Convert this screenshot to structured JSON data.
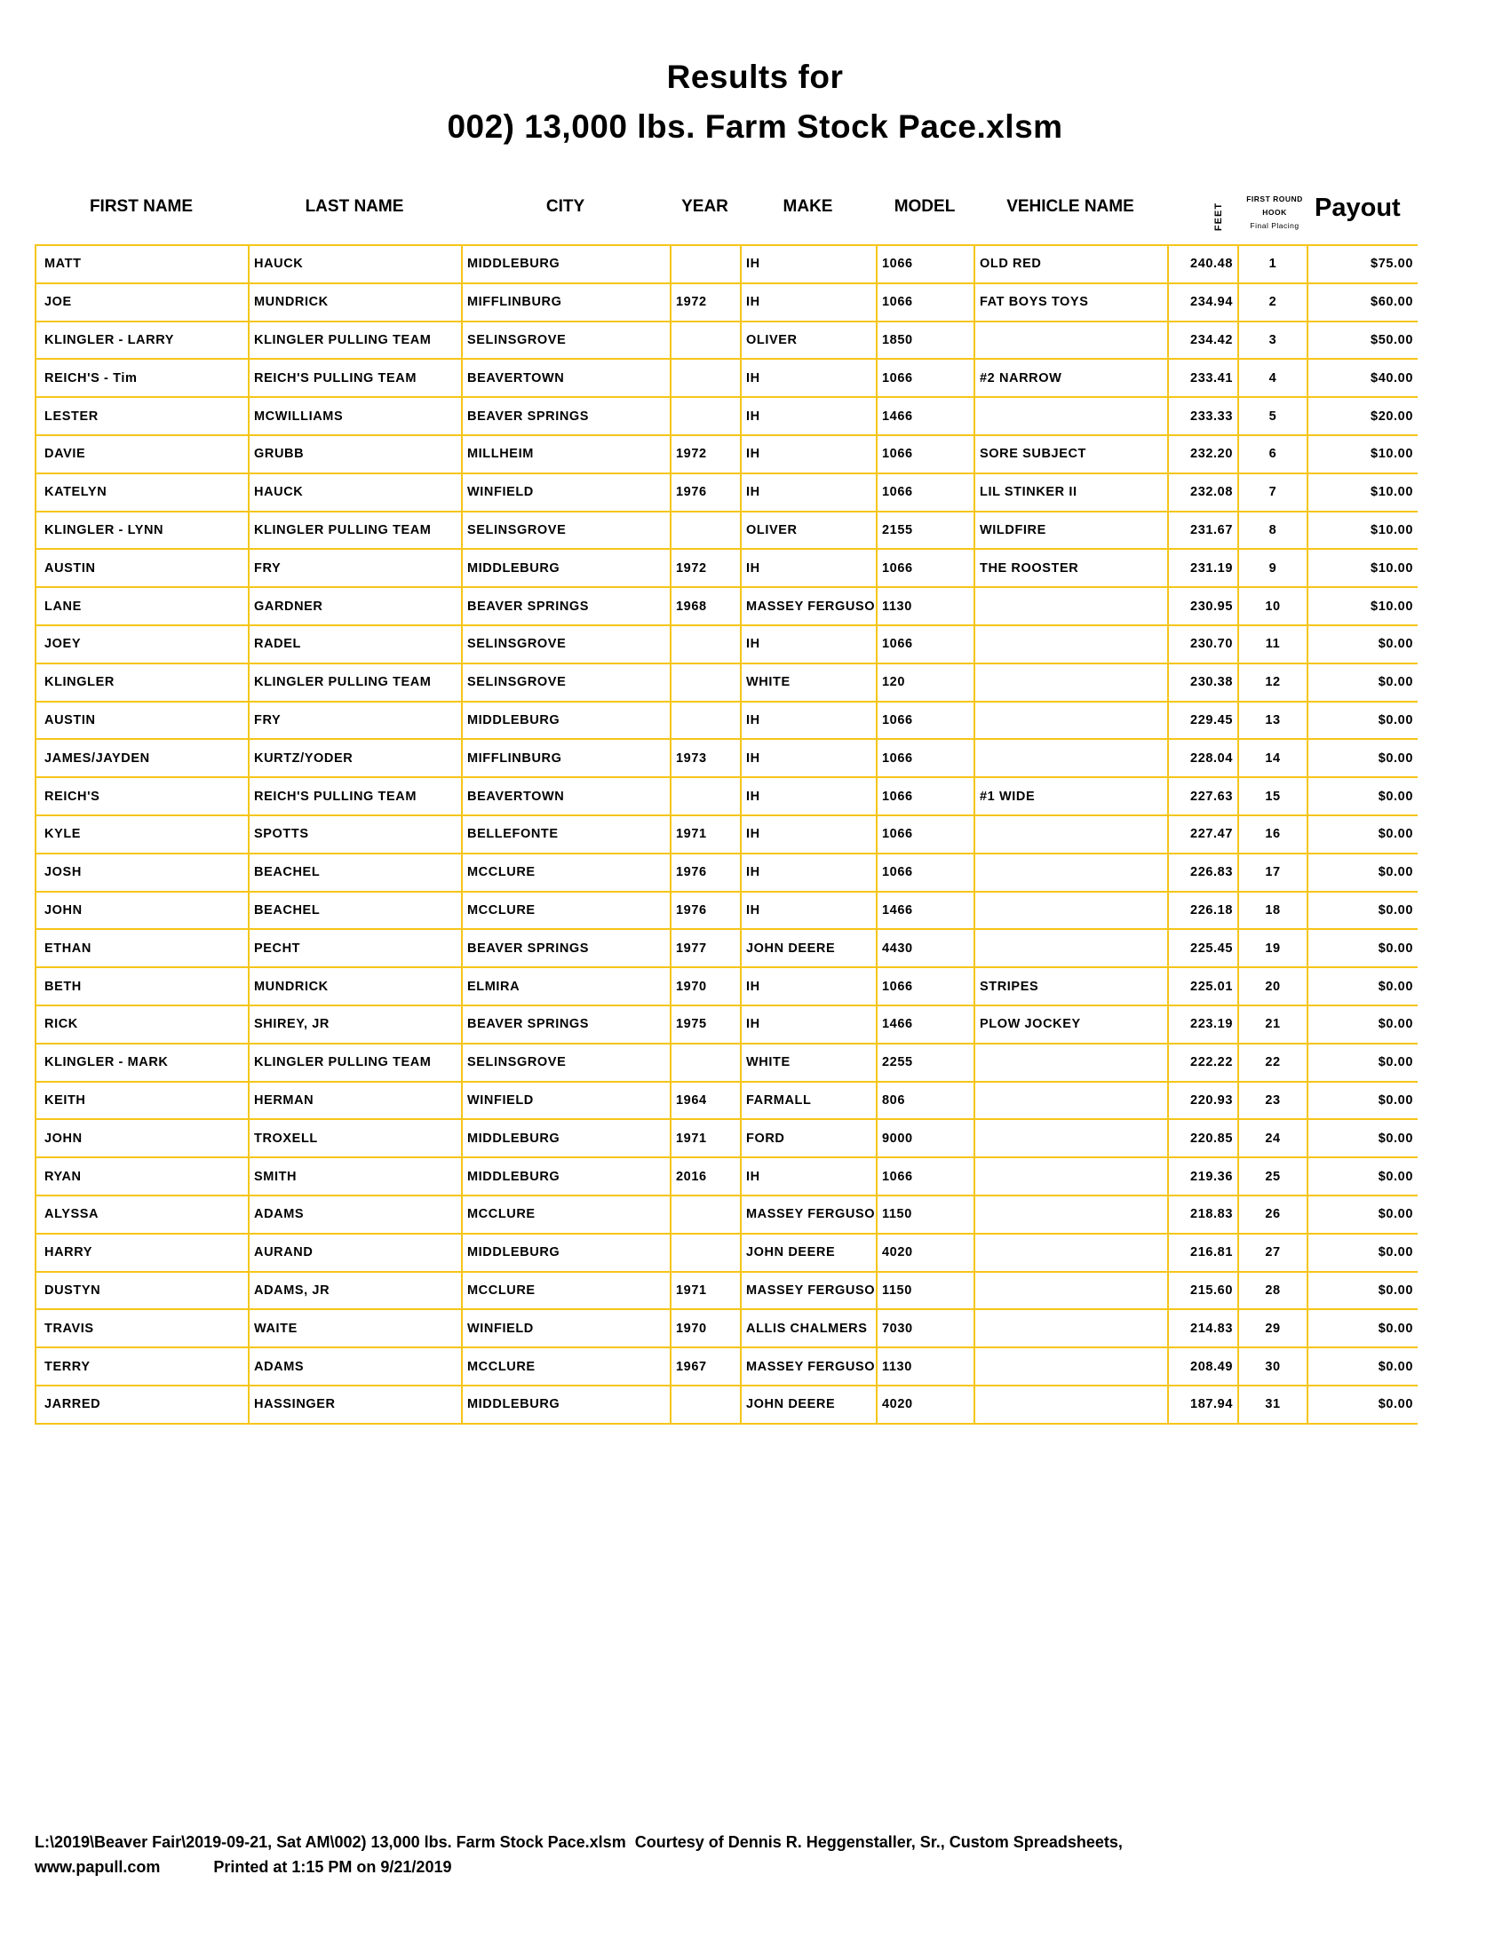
{
  "title_line1": "Results for",
  "title_line2": "002) 13,000 lbs. Farm Stock Pace.xlsm",
  "headers": {
    "first_name": "FIRST NAME",
    "last_name": "LAST NAME",
    "city": "CITY",
    "year": "YEAR",
    "make": "MAKE",
    "model": "MODEL",
    "vehicle_name": "VEHICLE NAME",
    "feet": "FEET",
    "hook_line1": "FIRST ROUND",
    "hook_line2": "HOOK",
    "hook_line3": "Final Placing",
    "payout": "Payout"
  },
  "border_color": "#f5c518",
  "rows": [
    [
      "MATT",
      "HAUCK",
      "MIDDLEBURG",
      "",
      "IH",
      "1066",
      "OLD RED",
      "240.48",
      "1",
      "$75.00"
    ],
    [
      "JOE",
      "MUNDRICK",
      "MIFFLINBURG",
      "1972",
      "IH",
      "1066",
      "FAT BOYS TOYS",
      "234.94",
      "2",
      "$60.00"
    ],
    [
      "KLINGLER - LARRY",
      "KLINGLER PULLING TEAM",
      "SELINSGROVE",
      "",
      "OLIVER",
      "1850",
      "",
      "234.42",
      "3",
      "$50.00"
    ],
    [
      "REICH'S  - Tim",
      "REICH'S PULLING TEAM",
      "BEAVERTOWN",
      "",
      "IH",
      "1066",
      "#2 NARROW",
      "233.41",
      "4",
      "$40.00"
    ],
    [
      "LESTER",
      "MCWILLIAMS",
      "BEAVER SPRINGS",
      "",
      "IH",
      "1466",
      "",
      "233.33",
      "5",
      "$20.00"
    ],
    [
      "DAVIE",
      "GRUBB",
      "MILLHEIM",
      "1972",
      "IH",
      "1066",
      "SORE SUBJECT",
      "232.20",
      "6",
      "$10.00"
    ],
    [
      "KATELYN",
      "HAUCK",
      "WINFIELD",
      "1976",
      "IH",
      "1066",
      "LIL STINKER II",
      "232.08",
      "7",
      "$10.00"
    ],
    [
      "KLINGLER - LYNN",
      "KLINGLER PULLING TEAM",
      "SELINSGROVE",
      "",
      "OLIVER",
      "2155",
      "WILDFIRE",
      "231.67",
      "8",
      "$10.00"
    ],
    [
      "AUSTIN",
      "FRY",
      "MIDDLEBURG",
      "1972",
      "IH",
      "1066",
      "THE ROOSTER",
      "231.19",
      "9",
      "$10.00"
    ],
    [
      "LANE",
      "GARDNER",
      "BEAVER SPRINGS",
      "1968",
      "MASSEY FERGUSON",
      "1130",
      "",
      "230.95",
      "10",
      "$10.00"
    ],
    [
      "JOEY",
      "RADEL",
      "SELINSGROVE",
      "",
      "IH",
      "1066",
      "",
      "230.70",
      "11",
      "$0.00"
    ],
    [
      "KLINGLER",
      "KLINGLER PULLING TEAM",
      "SELINSGROVE",
      "",
      "WHITE",
      "120",
      "",
      "230.38",
      "12",
      "$0.00"
    ],
    [
      "AUSTIN",
      "FRY",
      "MIDDLEBURG",
      "",
      "IH",
      "1066",
      "",
      "229.45",
      "13",
      "$0.00"
    ],
    [
      "JAMES/JAYDEN",
      "KURTZ/YODER",
      "MIFFLINBURG",
      "1973",
      "IH",
      "1066",
      "",
      "228.04",
      "14",
      "$0.00"
    ],
    [
      "REICH'S",
      "REICH'S PULLING TEAM",
      "BEAVERTOWN",
      "",
      "IH",
      "1066",
      "#1 WIDE",
      "227.63",
      "15",
      "$0.00"
    ],
    [
      "KYLE",
      "SPOTTS",
      "BELLEFONTE",
      "1971",
      "IH",
      "1066",
      "",
      "227.47",
      "16",
      "$0.00"
    ],
    [
      "JOSH",
      "BEACHEL",
      "MCCLURE",
      "1976",
      "IH",
      "1066",
      "",
      "226.83",
      "17",
      "$0.00"
    ],
    [
      "JOHN",
      "BEACHEL",
      "MCCLURE",
      "1976",
      "IH",
      "1466",
      "",
      "226.18",
      "18",
      "$0.00"
    ],
    [
      "ETHAN",
      "PECHT",
      "BEAVER SPRINGS",
      "1977",
      "JOHN DEERE",
      "4430",
      "",
      "225.45",
      "19",
      "$0.00"
    ],
    [
      "BETH",
      "MUNDRICK",
      "ELMIRA",
      "1970",
      "IH",
      "1066",
      "STRIPES",
      "225.01",
      "20",
      "$0.00"
    ],
    [
      "RICK",
      "SHIREY, JR",
      "BEAVER SPRINGS",
      "1975",
      "IH",
      "1466",
      "PLOW JOCKEY",
      "223.19",
      "21",
      "$0.00"
    ],
    [
      "KLINGLER - MARK",
      "KLINGLER PULLING TEAM",
      "SELINSGROVE",
      "",
      "WHITE",
      "2255",
      "",
      "222.22",
      "22",
      "$0.00"
    ],
    [
      "KEITH",
      "HERMAN",
      "WINFIELD",
      "1964",
      "FARMALL",
      "806",
      "",
      "220.93",
      "23",
      "$0.00"
    ],
    [
      "JOHN",
      "TROXELL",
      "MIDDLEBURG",
      "1971",
      "FORD",
      "9000",
      "",
      "220.85",
      "24",
      "$0.00"
    ],
    [
      "RYAN",
      "SMITH",
      "MIDDLEBURG",
      "2016",
      "IH",
      "1066",
      "",
      "219.36",
      "25",
      "$0.00"
    ],
    [
      "ALYSSA",
      "ADAMS",
      "MCCLURE",
      "",
      "MASSEY FERGUSON",
      "1150",
      "",
      "218.83",
      "26",
      "$0.00"
    ],
    [
      "HARRY",
      "AURAND",
      "MIDDLEBURG",
      "",
      "JOHN DEERE",
      "4020",
      "",
      "216.81",
      "27",
      "$0.00"
    ],
    [
      "DUSTYN",
      "ADAMS, JR",
      "MCCLURE",
      "1971",
      "MASSEY FERGUSON",
      "1150",
      "",
      "215.60",
      "28",
      "$0.00"
    ],
    [
      "TRAVIS",
      "WAITE",
      "WINFIELD",
      "1970",
      "ALLIS CHALMERS",
      "7030",
      "",
      "214.83",
      "29",
      "$0.00"
    ],
    [
      "TERRY",
      "ADAMS",
      "MCCLURE",
      "1967",
      "MASSEY FERGUSON",
      "1130",
      "",
      "208.49",
      "30",
      "$0.00"
    ],
    [
      "JARRED",
      "HASSINGER",
      "MIDDLEBURG",
      "",
      "JOHN DEERE",
      "4020",
      "",
      "187.94",
      "31",
      "$0.00"
    ]
  ],
  "footer_line1": "L:\\2019\\Beaver Fair\\2019-09-21, Sat AM\\002) 13,000 lbs. Farm Stock Pace.xlsm  Courtesy of Dennis R. Heggenstaller, Sr., Custom Spreadsheets,",
  "footer_website": "www.papull.com",
  "footer_printed": "Printed at 1:15 PM on 9/21/2019"
}
